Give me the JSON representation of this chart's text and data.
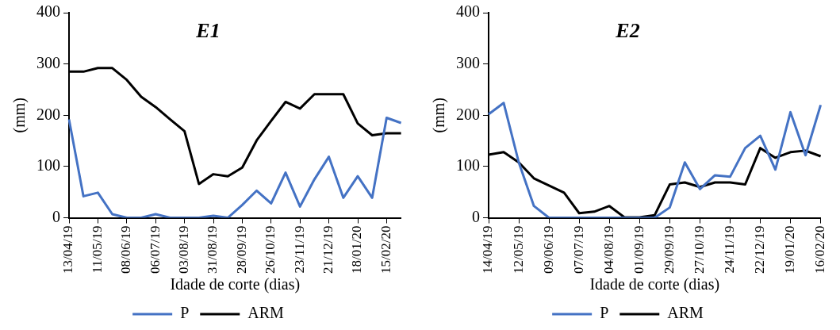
{
  "chart_data": [
    {
      "type": "line",
      "title": "E1",
      "xlabel": "Idade de corte (dias)",
      "ylabel": "(mm)",
      "categories": [
        "13/04/19",
        null,
        "11/05/19",
        null,
        "08/06/19",
        null,
        "06/07/19",
        null,
        "03/08/19",
        null,
        "31/08/19",
        null,
        "28/09/19",
        null,
        "26/10/19",
        null,
        "23/11/19",
        null,
        "21/12/19",
        null,
        "18/01/20",
        null,
        "15/02/20",
        null
      ],
      "series": [
        {
          "name": "P",
          "color": "#4472c4",
          "values": [
            192,
            42,
            49,
            7,
            0,
            0,
            7,
            0,
            0,
            0,
            4,
            0,
            25,
            53,
            28,
            88,
            22,
            75,
            119,
            39,
            81,
            39,
            195,
            185
          ]
        },
        {
          "name": "ARM",
          "color": "#000000",
          "values": [
            285,
            285,
            292,
            292,
            269,
            236,
            216,
            192,
            169,
            66,
            85,
            81,
            98,
            151,
            189,
            226,
            213,
            241,
            241,
            241,
            184,
            161,
            165,
            165
          ]
        }
      ],
      "ylim": [
        0,
        400
      ],
      "yticks": [
        0,
        100,
        200,
        300,
        400
      ],
      "grid": false,
      "legend": "bottom",
      "marker": "none",
      "line_style": "solid"
    },
    {
      "type": "line",
      "title": "E2",
      "xlabel": "Idade de corte (dias)",
      "ylabel": "(mm)",
      "categories": [
        "14/04/19",
        null,
        "12/05/19",
        null,
        "09/06/19",
        null,
        "07/07/19",
        null,
        "04/08/19",
        null,
        "01/09/19",
        null,
        "29/09/19",
        null,
        "27/10/19",
        null,
        "24/11/19",
        null,
        "22/12/19",
        null,
        "19/01/20",
        null,
        "16/02/20"
      ],
      "series": [
        {
          "name": "P",
          "color": "#4472c4",
          "values": [
            202,
            224,
            108,
            23,
            0,
            0,
            0,
            0,
            0,
            0,
            0,
            0,
            20,
            108,
            56,
            83,
            80,
            136,
            160,
            94,
            206,
            122,
            220
          ]
        },
        {
          "name": "ARM",
          "color": "#000000",
          "values": [
            123,
            128,
            108,
            77,
            63,
            49,
            9,
            12,
            23,
            1,
            1,
            5,
            65,
            69,
            60,
            69,
            69,
            65,
            136,
            117,
            128,
            131,
            120
          ]
        }
      ],
      "ylim": [
        0,
        400
      ],
      "yticks": [
        0,
        100,
        200,
        300,
        400
      ],
      "grid": false,
      "legend": "bottom",
      "marker": "none",
      "line_style": "solid"
    }
  ]
}
